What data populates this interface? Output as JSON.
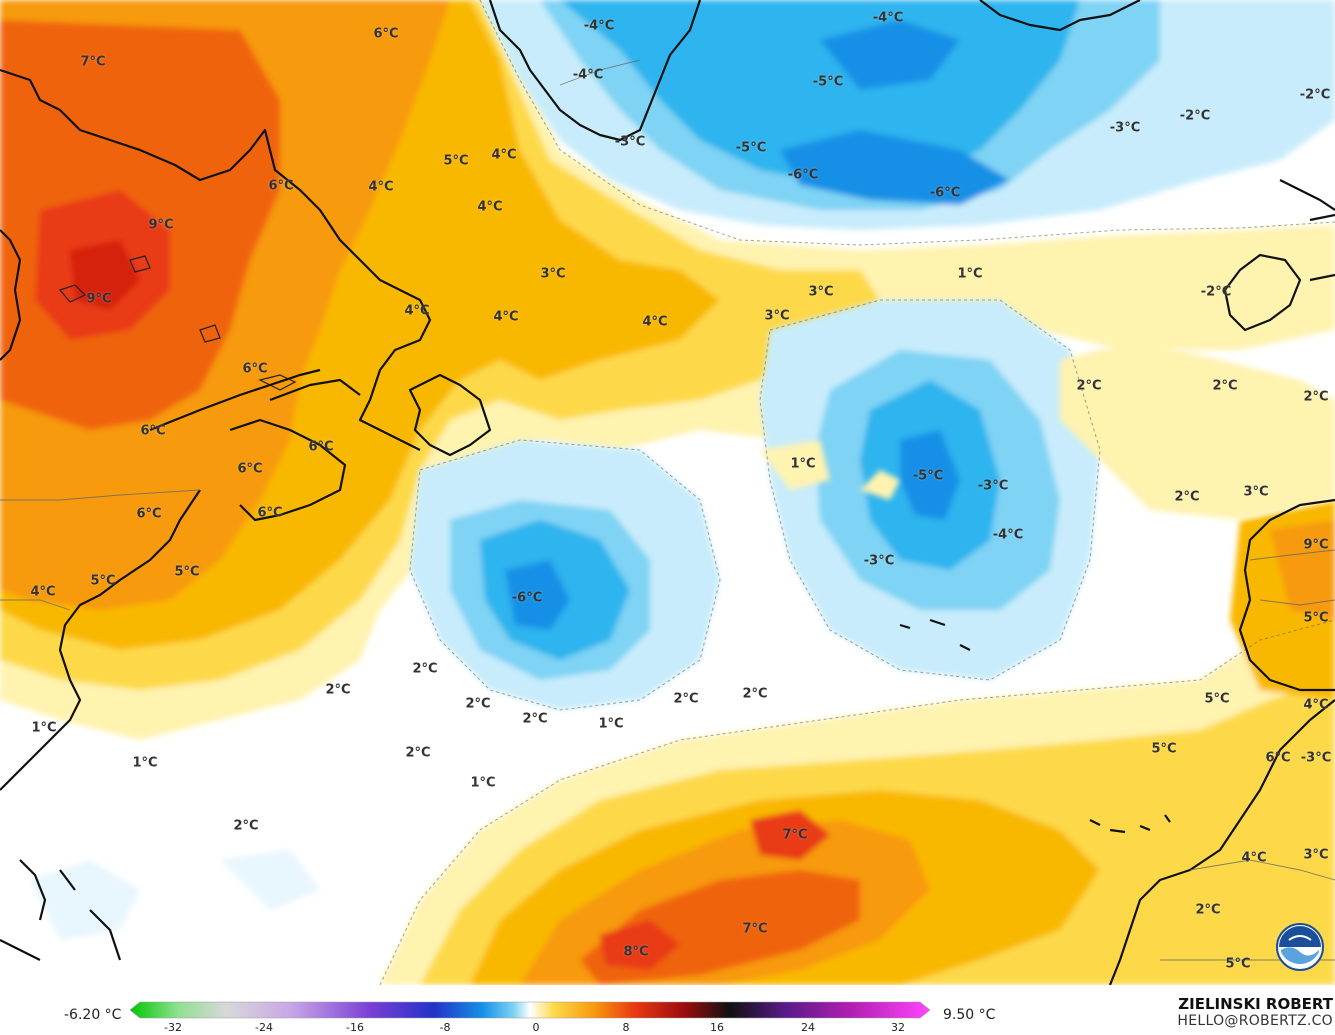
{
  "map": {
    "legend": {
      "min_label": "-6.20 °C",
      "max_label": "9.50 °C",
      "ticks": [
        "-32",
        "-24",
        "-16",
        "-8",
        "0",
        "8",
        "16",
        "24",
        "32"
      ]
    },
    "credit": {
      "name": "ZIELINSKI ROBERT",
      "email": "HELLO@ROBERTZ.CO"
    },
    "logo": "noaa-logo",
    "colors": {
      "ocean_neutral": "#ffffff",
      "cold_light": "#c8ecfb",
      "cold_mid": "#7fd3f4",
      "cold_strong": "#2eb4ee",
      "cold_deep": "#1490e6",
      "warm_light": "#fff3b0",
      "warm_mid": "#fdd94a",
      "warm_strong": "#f9b800",
      "warm_orange": "#f79a0e",
      "warm_deep": "#f0640f",
      "warm_red": "#e83a12"
    },
    "labels": [
      {
        "text": "6°C"
      },
      {
        "text": "7°C"
      },
      {
        "text": "5°C"
      },
      {
        "text": "4°C"
      },
      {
        "text": "6°C"
      },
      {
        "text": "4°C"
      },
      {
        "text": "4°C"
      },
      {
        "text": "9°C"
      },
      {
        "text": "9°C"
      },
      {
        "text": "3°C"
      },
      {
        "text": "4°C"
      },
      {
        "text": "4°C"
      },
      {
        "text": "4°C"
      },
      {
        "text": "3°C"
      },
      {
        "text": "3°C"
      },
      {
        "text": "6°C"
      },
      {
        "text": "6°C"
      },
      {
        "text": "6°C"
      },
      {
        "text": "6°C"
      },
      {
        "text": "6°C"
      },
      {
        "text": "6°C"
      },
      {
        "text": "5°C"
      },
      {
        "text": "5°C"
      },
      {
        "text": "4°C"
      },
      {
        "text": "-4°C"
      },
      {
        "text": "-4°C"
      },
      {
        "text": "-3°C"
      },
      {
        "text": "-4°C"
      },
      {
        "text": "-5°C"
      },
      {
        "text": "-5°C"
      },
      {
        "text": "-6°C"
      },
      {
        "text": "-6°C"
      },
      {
        "text": "-3°C"
      },
      {
        "text": "-2°C"
      },
      {
        "text": "-2°C"
      },
      {
        "text": "1°C"
      },
      {
        "text": "-2°C"
      },
      {
        "text": "2°C"
      },
      {
        "text": "2°C"
      },
      {
        "text": "2°C"
      },
      {
        "text": "1°C"
      },
      {
        "text": "-5°C"
      },
      {
        "text": "-3°C"
      },
      {
        "text": "-4°C"
      },
      {
        "text": "-3°C"
      },
      {
        "text": "2°C"
      },
      {
        "text": "3°C"
      },
      {
        "text": "9°C"
      },
      {
        "text": "-6°C"
      },
      {
        "text": "5°C"
      },
      {
        "text": "2°C"
      },
      {
        "text": "2°C"
      },
      {
        "text": "2°C"
      },
      {
        "text": "2°C"
      },
      {
        "text": "1°C"
      },
      {
        "text": "2°C"
      },
      {
        "text": "2°C"
      },
      {
        "text": "1°C"
      },
      {
        "text": "1°C"
      },
      {
        "text": "2°C"
      },
      {
        "text": "1°C"
      },
      {
        "text": "2°C"
      },
      {
        "text": "5°C"
      },
      {
        "text": "5°C"
      },
      {
        "text": "4°C"
      },
      {
        "text": "6°C"
      },
      {
        "text": "-3°C"
      },
      {
        "text": "7°C"
      },
      {
        "text": "7°C"
      },
      {
        "text": "8°C"
      },
      {
        "text": "4°C"
      },
      {
        "text": "3°C"
      },
      {
        "text": "2°C"
      },
      {
        "text": "5°C"
      }
    ]
  }
}
